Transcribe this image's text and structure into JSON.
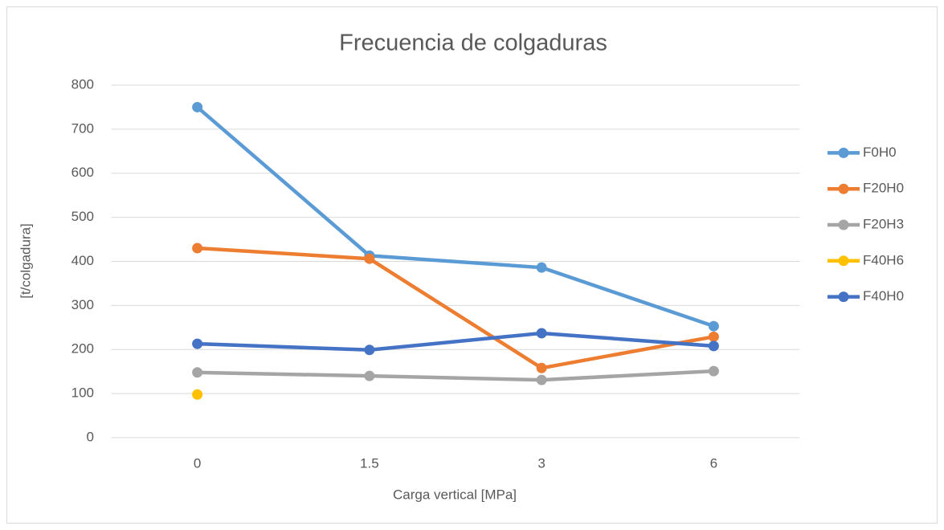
{
  "chart_data": {
    "type": "line",
    "title": "Frecuencia de colgaduras",
    "x_label": "Carga vertical [MPa]",
    "y_label": "[t/colgadura]",
    "categories": [
      "0",
      "1.5",
      "3",
      "6"
    ],
    "series": [
      {
        "name": "F0H0",
        "color": "#5b9bd5",
        "values": [
          750,
          413,
          386,
          253
        ]
      },
      {
        "name": "F20H0",
        "color": "#ed7d31",
        "values": [
          430,
          406,
          158,
          229
        ]
      },
      {
        "name": "F20H3",
        "color": "#a5a5a5",
        "values": [
          148,
          140,
          131,
          151
        ]
      },
      {
        "name": "F40H6",
        "color": "#ffc000",
        "values": [
          98,
          null,
          null,
          null
        ]
      },
      {
        "name": "F40H0",
        "color": "#4472c4",
        "values": [
          213,
          199,
          237,
          208
        ]
      }
    ],
    "ylim": [
      0,
      800
    ],
    "yticks": [
      0,
      100,
      200,
      300,
      400,
      500,
      600,
      700,
      800
    ],
    "grid": true,
    "legend": "right"
  }
}
